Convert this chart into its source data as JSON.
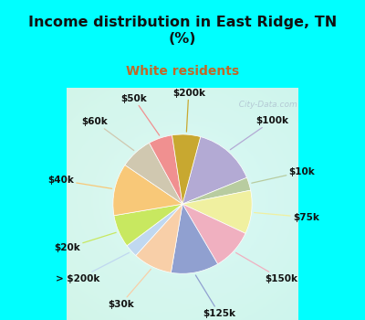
{
  "title": "Income distribution in East Ridge, TN\n(%)",
  "subtitle": "White residents",
  "background_color": "#00FFFF",
  "chart_bg_color": "#d8efe8",
  "labels": [
    "$100k",
    "$10k",
    "$75k",
    "$150k",
    "$125k",
    "$30k",
    "> $200k",
    "$20k",
    "$40k",
    "$60k",
    "$50k",
    "$200k"
  ],
  "sizes": [
    14.5,
    3.0,
    10.0,
    9.5,
    11.0,
    9.0,
    3.0,
    7.5,
    12.0,
    7.5,
    5.5,
    6.5
  ],
  "colors": [
    "#b3aad4",
    "#b8cca0",
    "#f0f0a0",
    "#f0b0c0",
    "#90a0d0",
    "#f8cfa8",
    "#c0d8f0",
    "#c8e860",
    "#f8c878",
    "#d0c8b0",
    "#f09090",
    "#c8a830"
  ],
  "startangle": 75,
  "watermark": "  City-Data.com",
  "label_fontsize": 7.5,
  "title_fontsize": 11.5,
  "subtitle_fontsize": 10,
  "subtitle_color": "#c06828"
}
